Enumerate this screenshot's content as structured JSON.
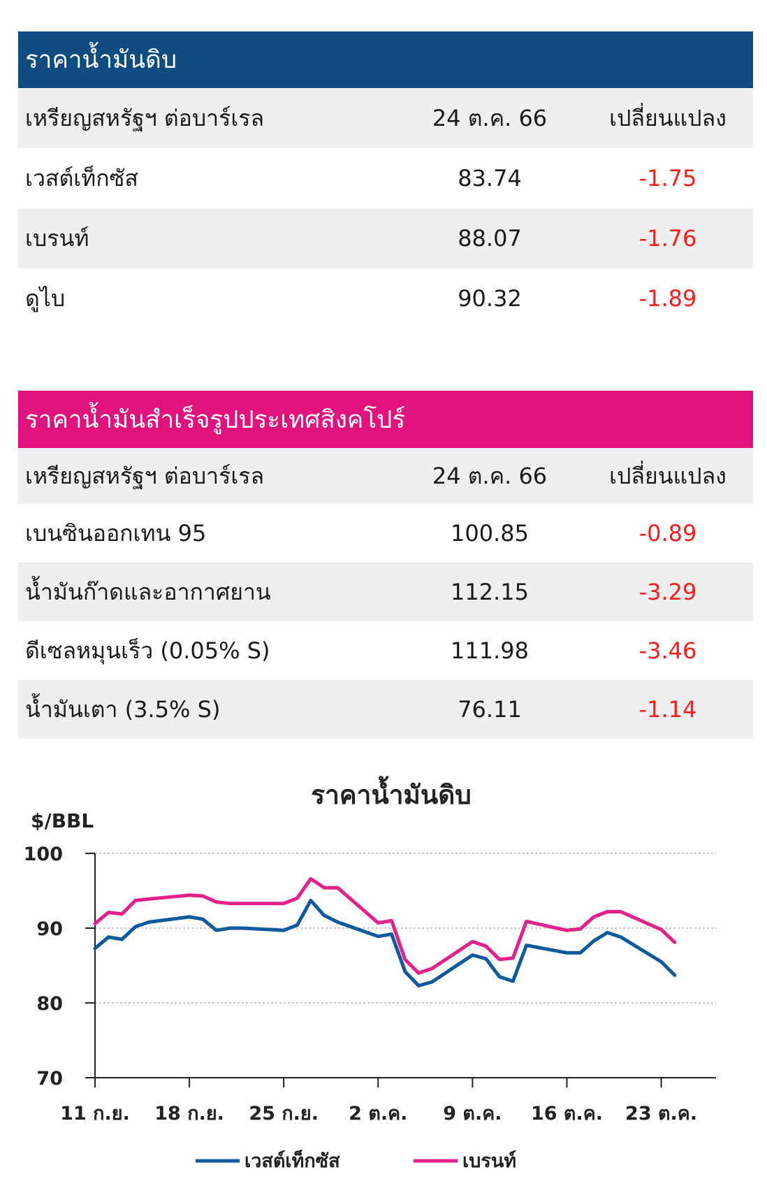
{
  "crude_table": {
    "title": "ราคาน้ำมันดิบ",
    "columns": [
      "เหรียญสหรัฐฯ ต่อบาร์เรล",
      "24 ต.ค. 66",
      "เปลี่ยนแปลง"
    ],
    "rows": [
      {
        "name": "เวสต์เท็กซัส",
        "price": "83.74",
        "change": "-1.75"
      },
      {
        "name": "เบรนท์",
        "price": "88.07",
        "change": "-1.76"
      },
      {
        "name": "ดูไบ",
        "price": "90.32",
        "change": "-1.89"
      }
    ],
    "header_color": "#0f4c81"
  },
  "refined_table": {
    "title": "ราคาน้ำมันสำเร็จรูปประเทศสิงคโปร์",
    "columns": [
      "เหรียญสหรัฐฯ ต่อบาร์เรล",
      "24 ต.ค. 66",
      "เปลี่ยนแปลง"
    ],
    "rows": [
      {
        "name": "เบนซินออกเทน 95",
        "price": "100.85",
        "change": "-0.89"
      },
      {
        "name": "น้ำมันก๊าดและอากาศยาน",
        "price": "112.15",
        "change": "-3.29"
      },
      {
        "name": "ดีเซลหมุนเร็ว (0.05% S)",
        "price": "111.98",
        "change": "-3.46"
      },
      {
        "name": "น้ำมันเตา (3.5% S)",
        "price": "76.11",
        "change": "-1.14"
      }
    ],
    "header_color": "#e2127d"
  },
  "negative_color": "#ff1a1a",
  "chart_data": {
    "type": "line",
    "title": "ราคาน้ำมันดิบ",
    "ylabel": "$/BBL",
    "ylim": [
      70,
      100
    ],
    "yticks": [
      70,
      80,
      90,
      100
    ],
    "grid": "dashed horizontal at 80, 90, 100",
    "xticks": [
      "11 ก.ย.",
      "18 ก.ย.",
      "25 ก.ย.",
      "2 ต.ค.",
      "9 ต.ค.",
      "16 ต.ค.",
      "23 ต.ค."
    ],
    "x": [
      "2023-09-11",
      "2023-09-12",
      "2023-09-13",
      "2023-09-14",
      "2023-09-15",
      "2023-09-18",
      "2023-09-19",
      "2023-09-20",
      "2023-09-21",
      "2023-09-22",
      "2023-09-25",
      "2023-09-26",
      "2023-09-27",
      "2023-09-28",
      "2023-09-29",
      "2023-10-02",
      "2023-10-03",
      "2023-10-04",
      "2023-10-05",
      "2023-10-06",
      "2023-10-09",
      "2023-10-10",
      "2023-10-11",
      "2023-10-12",
      "2023-10-13",
      "2023-10-16",
      "2023-10-17",
      "2023-10-18",
      "2023-10-19",
      "2023-10-20",
      "2023-10-23",
      "2023-10-24"
    ],
    "series": [
      {
        "name": "เวสต์เท็กซัส",
        "color": "#0f5a9c",
        "values": [
          87.3,
          88.8,
          88.5,
          90.2,
          90.8,
          91.5,
          91.2,
          89.7,
          90.0,
          90.0,
          89.7,
          90.4,
          93.7,
          91.7,
          90.8,
          88.9,
          89.2,
          84.2,
          82.3,
          82.8,
          86.4,
          85.9,
          83.5,
          82.9,
          87.7,
          86.7,
          86.7,
          88.3,
          89.4,
          88.8,
          85.5,
          83.7
        ]
      },
      {
        "name": "เบรนท์",
        "color": "#e4208a",
        "values": [
          90.6,
          92.1,
          91.9,
          93.7,
          93.9,
          94.4,
          94.3,
          93.5,
          93.3,
          93.3,
          93.3,
          94.0,
          96.6,
          95.4,
          95.4,
          90.7,
          91.0,
          85.8,
          84.0,
          84.6,
          88.2,
          87.6,
          85.8,
          86.0,
          90.9,
          89.7,
          89.9,
          91.5,
          92.2,
          92.2,
          89.8,
          88.1
        ]
      }
    ],
    "legend": [
      "เวสต์เท็กซัส",
      "เบรนท์"
    ],
    "legend_position": "bottom"
  }
}
